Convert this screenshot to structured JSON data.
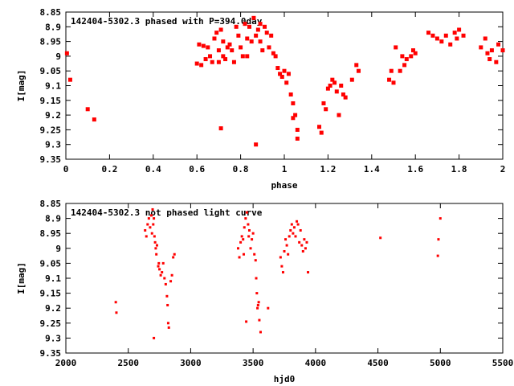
{
  "chart_data": [
    {
      "type": "scatter",
      "title": "142404-5302.3 phased with P=394.0day",
      "xlabel": "phase",
      "ylabel": "I[mag]",
      "xlim": [
        0,
        2
      ],
      "ylim": [
        8.85,
        9.35
      ],
      "y_inverted": true,
      "grid": false,
      "marker_color": "#ff0000",
      "x_ticks": [
        "0",
        "0.2",
        "0.4",
        "0.6",
        "0.8",
        "1",
        "1.2",
        "1.4",
        "1.6",
        "1.8",
        "2"
      ],
      "y_ticks": [
        "8.85",
        "8.9",
        "8.95",
        "9",
        "9.05",
        "9.1",
        "9.15",
        "9.2",
        "9.25",
        "9.3",
        "9.35"
      ],
      "points": [
        [
          0.005,
          8.99
        ],
        [
          0.02,
          9.08
        ],
        [
          0.1,
          9.18
        ],
        [
          0.13,
          9.215
        ],
        [
          0.6,
          9.025
        ],
        [
          0.62,
          9.03
        ],
        [
          0.61,
          8.96
        ],
        [
          0.63,
          8.965
        ],
        [
          0.65,
          8.97
        ],
        [
          0.64,
          9.01
        ],
        [
          0.66,
          9.0
        ],
        [
          0.67,
          9.02
        ],
        [
          0.68,
          8.94
        ],
        [
          0.69,
          8.92
        ],
        [
          0.7,
          8.98
        ],
        [
          0.7,
          9.02
        ],
        [
          0.71,
          8.91
        ],
        [
          0.72,
          8.95
        ],
        [
          0.72,
          9.0
        ],
        [
          0.73,
          9.01
        ],
        [
          0.74,
          8.97
        ],
        [
          0.75,
          8.96
        ],
        [
          0.76,
          8.98
        ],
        [
          0.77,
          9.02
        ],
        [
          0.78,
          8.9
        ],
        [
          0.79,
          8.93
        ],
        [
          0.8,
          8.97
        ],
        [
          0.81,
          9.0
        ],
        [
          0.82,
          8.89
        ],
        [
          0.83,
          8.94
        ],
        [
          0.83,
          9.0
        ],
        [
          0.84,
          8.9
        ],
        [
          0.85,
          8.95
        ],
        [
          0.86,
          8.87
        ],
        [
          0.87,
          8.93
        ],
        [
          0.88,
          8.91
        ],
        [
          0.89,
          8.95
        ],
        [
          0.89,
          8.89
        ],
        [
          0.9,
          8.98
        ],
        [
          0.91,
          8.9
        ],
        [
          0.92,
          8.92
        ],
        [
          0.93,
          8.97
        ],
        [
          0.94,
          8.93
        ],
        [
          0.95,
          8.99
        ],
        [
          0.96,
          9.0
        ],
        [
          0.97,
          9.04
        ],
        [
          0.98,
          9.06
        ],
        [
          0.99,
          9.07
        ],
        [
          1.0,
          9.05
        ],
        [
          1.01,
          9.09
        ],
        [
          1.02,
          9.06
        ],
        [
          1.03,
          9.13
        ],
        [
          1.04,
          9.21
        ],
        [
          1.04,
          9.16
        ],
        [
          1.05,
          9.2
        ],
        [
          1.06,
          9.25
        ],
        [
          1.06,
          9.28
        ],
        [
          0.71,
          9.245
        ],
        [
          0.87,
          9.3
        ],
        [
          1.16,
          9.24
        ],
        [
          1.17,
          9.26
        ],
        [
          1.18,
          9.16
        ],
        [
          1.19,
          9.18
        ],
        [
          1.2,
          9.11
        ],
        [
          1.21,
          9.1
        ],
        [
          1.22,
          9.08
        ],
        [
          1.23,
          9.09
        ],
        [
          1.24,
          9.12
        ],
        [
          1.25,
          9.2
        ],
        [
          1.26,
          9.1
        ],
        [
          1.27,
          9.13
        ],
        [
          1.28,
          9.14
        ],
        [
          1.31,
          9.08
        ],
        [
          1.33,
          9.03
        ],
        [
          1.34,
          9.05
        ],
        [
          1.48,
          9.08
        ],
        [
          1.49,
          9.05
        ],
        [
          1.5,
          9.09
        ],
        [
          1.51,
          8.97
        ],
        [
          1.53,
          9.05
        ],
        [
          1.54,
          9.0
        ],
        [
          1.55,
          9.03
        ],
        [
          1.56,
          9.01
        ],
        [
          1.58,
          9.0
        ],
        [
          1.59,
          8.98
        ],
        [
          1.6,
          8.99
        ],
        [
          1.66,
          8.92
        ],
        [
          1.68,
          8.93
        ],
        [
          1.7,
          8.94
        ],
        [
          1.72,
          8.95
        ],
        [
          1.74,
          8.93
        ],
        [
          1.76,
          8.96
        ],
        [
          1.78,
          8.92
        ],
        [
          1.79,
          8.94
        ],
        [
          1.8,
          8.91
        ],
        [
          1.82,
          8.93
        ],
        [
          1.9,
          8.97
        ],
        [
          1.92,
          8.94
        ],
        [
          1.93,
          8.99
        ],
        [
          1.94,
          9.01
        ],
        [
          1.95,
          8.98
        ],
        [
          1.97,
          9.02
        ],
        [
          1.98,
          8.96
        ],
        [
          2.0,
          8.98
        ]
      ]
    },
    {
      "type": "scatter",
      "title": "142404-5302.3 not phased light curve",
      "xlabel": "hjd0",
      "ylabel": "I[mag]",
      "xlim": [
        2000,
        5500
      ],
      "ylim": [
        8.85,
        9.35
      ],
      "y_inverted": true,
      "grid": false,
      "marker_color": "#ff0000",
      "x_ticks": [
        "2000",
        "2500",
        "3000",
        "3500",
        "4000",
        "4500",
        "5000",
        "5500"
      ],
      "y_ticks": [
        "8.85",
        "8.9",
        "8.95",
        "9",
        "9.05",
        "9.1",
        "9.15",
        "9.2",
        "9.25",
        "9.3",
        "9.35"
      ],
      "points": [
        [
          2400,
          9.18
        ],
        [
          2405,
          9.215
        ],
        [
          2635,
          8.94
        ],
        [
          2645,
          8.96
        ],
        [
          2655,
          8.92
        ],
        [
          2665,
          8.9
        ],
        [
          2675,
          8.93
        ],
        [
          2685,
          8.89
        ],
        [
          2690,
          8.95
        ],
        [
          2695,
          8.87
        ],
        [
          2700,
          8.92
        ],
        [
          2705,
          8.9
        ],
        [
          2710,
          8.96
        ],
        [
          2715,
          8.98
        ],
        [
          2720,
          9.0
        ],
        [
          2725,
          9.02
        ],
        [
          2730,
          8.99
        ],
        [
          2740,
          9.06
        ],
        [
          2745,
          9.05
        ],
        [
          2750,
          9.07
        ],
        [
          2760,
          9.09
        ],
        [
          2770,
          9.08
        ],
        [
          2780,
          9.05
        ],
        [
          2790,
          9.1
        ],
        [
          2800,
          9.12
        ],
        [
          2810,
          9.16
        ],
        [
          2815,
          9.19
        ],
        [
          2820,
          9.25
        ],
        [
          2825,
          9.265
        ],
        [
          2840,
          9.11
        ],
        [
          2850,
          9.09
        ],
        [
          2860,
          9.03
        ],
        [
          2870,
          9.02
        ],
        [
          2705,
          9.3
        ],
        [
          3380,
          9.0
        ],
        [
          3390,
          9.03
        ],
        [
          3400,
          8.98
        ],
        [
          3410,
          8.96
        ],
        [
          3420,
          8.97
        ],
        [
          3425,
          9.02
        ],
        [
          3430,
          8.93
        ],
        [
          3440,
          8.9
        ],
        [
          3445,
          9.245
        ],
        [
          3450,
          8.88
        ],
        [
          3460,
          8.92
        ],
        [
          3465,
          8.96
        ],
        [
          3470,
          8.94
        ],
        [
          3480,
          9.0
        ],
        [
          3490,
          8.97
        ],
        [
          3500,
          8.95
        ],
        [
          3510,
          9.02
        ],
        [
          3520,
          9.04
        ],
        [
          3525,
          9.1
        ],
        [
          3530,
          9.15
        ],
        [
          3535,
          9.2
        ],
        [
          3540,
          9.19
        ],
        [
          3545,
          9.18
        ],
        [
          3550,
          9.24
        ],
        [
          3560,
          9.28
        ],
        [
          3620,
          9.2
        ],
        [
          3720,
          9.03
        ],
        [
          3730,
          9.06
        ],
        [
          3740,
          9.08
        ],
        [
          3750,
          9.01
        ],
        [
          3760,
          8.97
        ],
        [
          3770,
          8.99
        ],
        [
          3780,
          9.02
        ],
        [
          3790,
          8.96
        ],
        [
          3800,
          8.94
        ],
        [
          3810,
          8.92
        ],
        [
          3820,
          8.95
        ],
        [
          3830,
          8.93
        ],
        [
          3840,
          8.96
        ],
        [
          3850,
          8.91
        ],
        [
          3860,
          8.92
        ],
        [
          3870,
          8.98
        ],
        [
          3880,
          8.94
        ],
        [
          3890,
          8.99
        ],
        [
          3900,
          9.01
        ],
        [
          3910,
          8.97
        ],
        [
          3920,
          9.0
        ],
        [
          3930,
          8.98
        ],
        [
          3940,
          9.08
        ],
        [
          4520,
          8.965
        ],
        [
          4980,
          9.025
        ],
        [
          4985,
          8.97
        ],
        [
          5000,
          8.9
        ]
      ]
    }
  ]
}
